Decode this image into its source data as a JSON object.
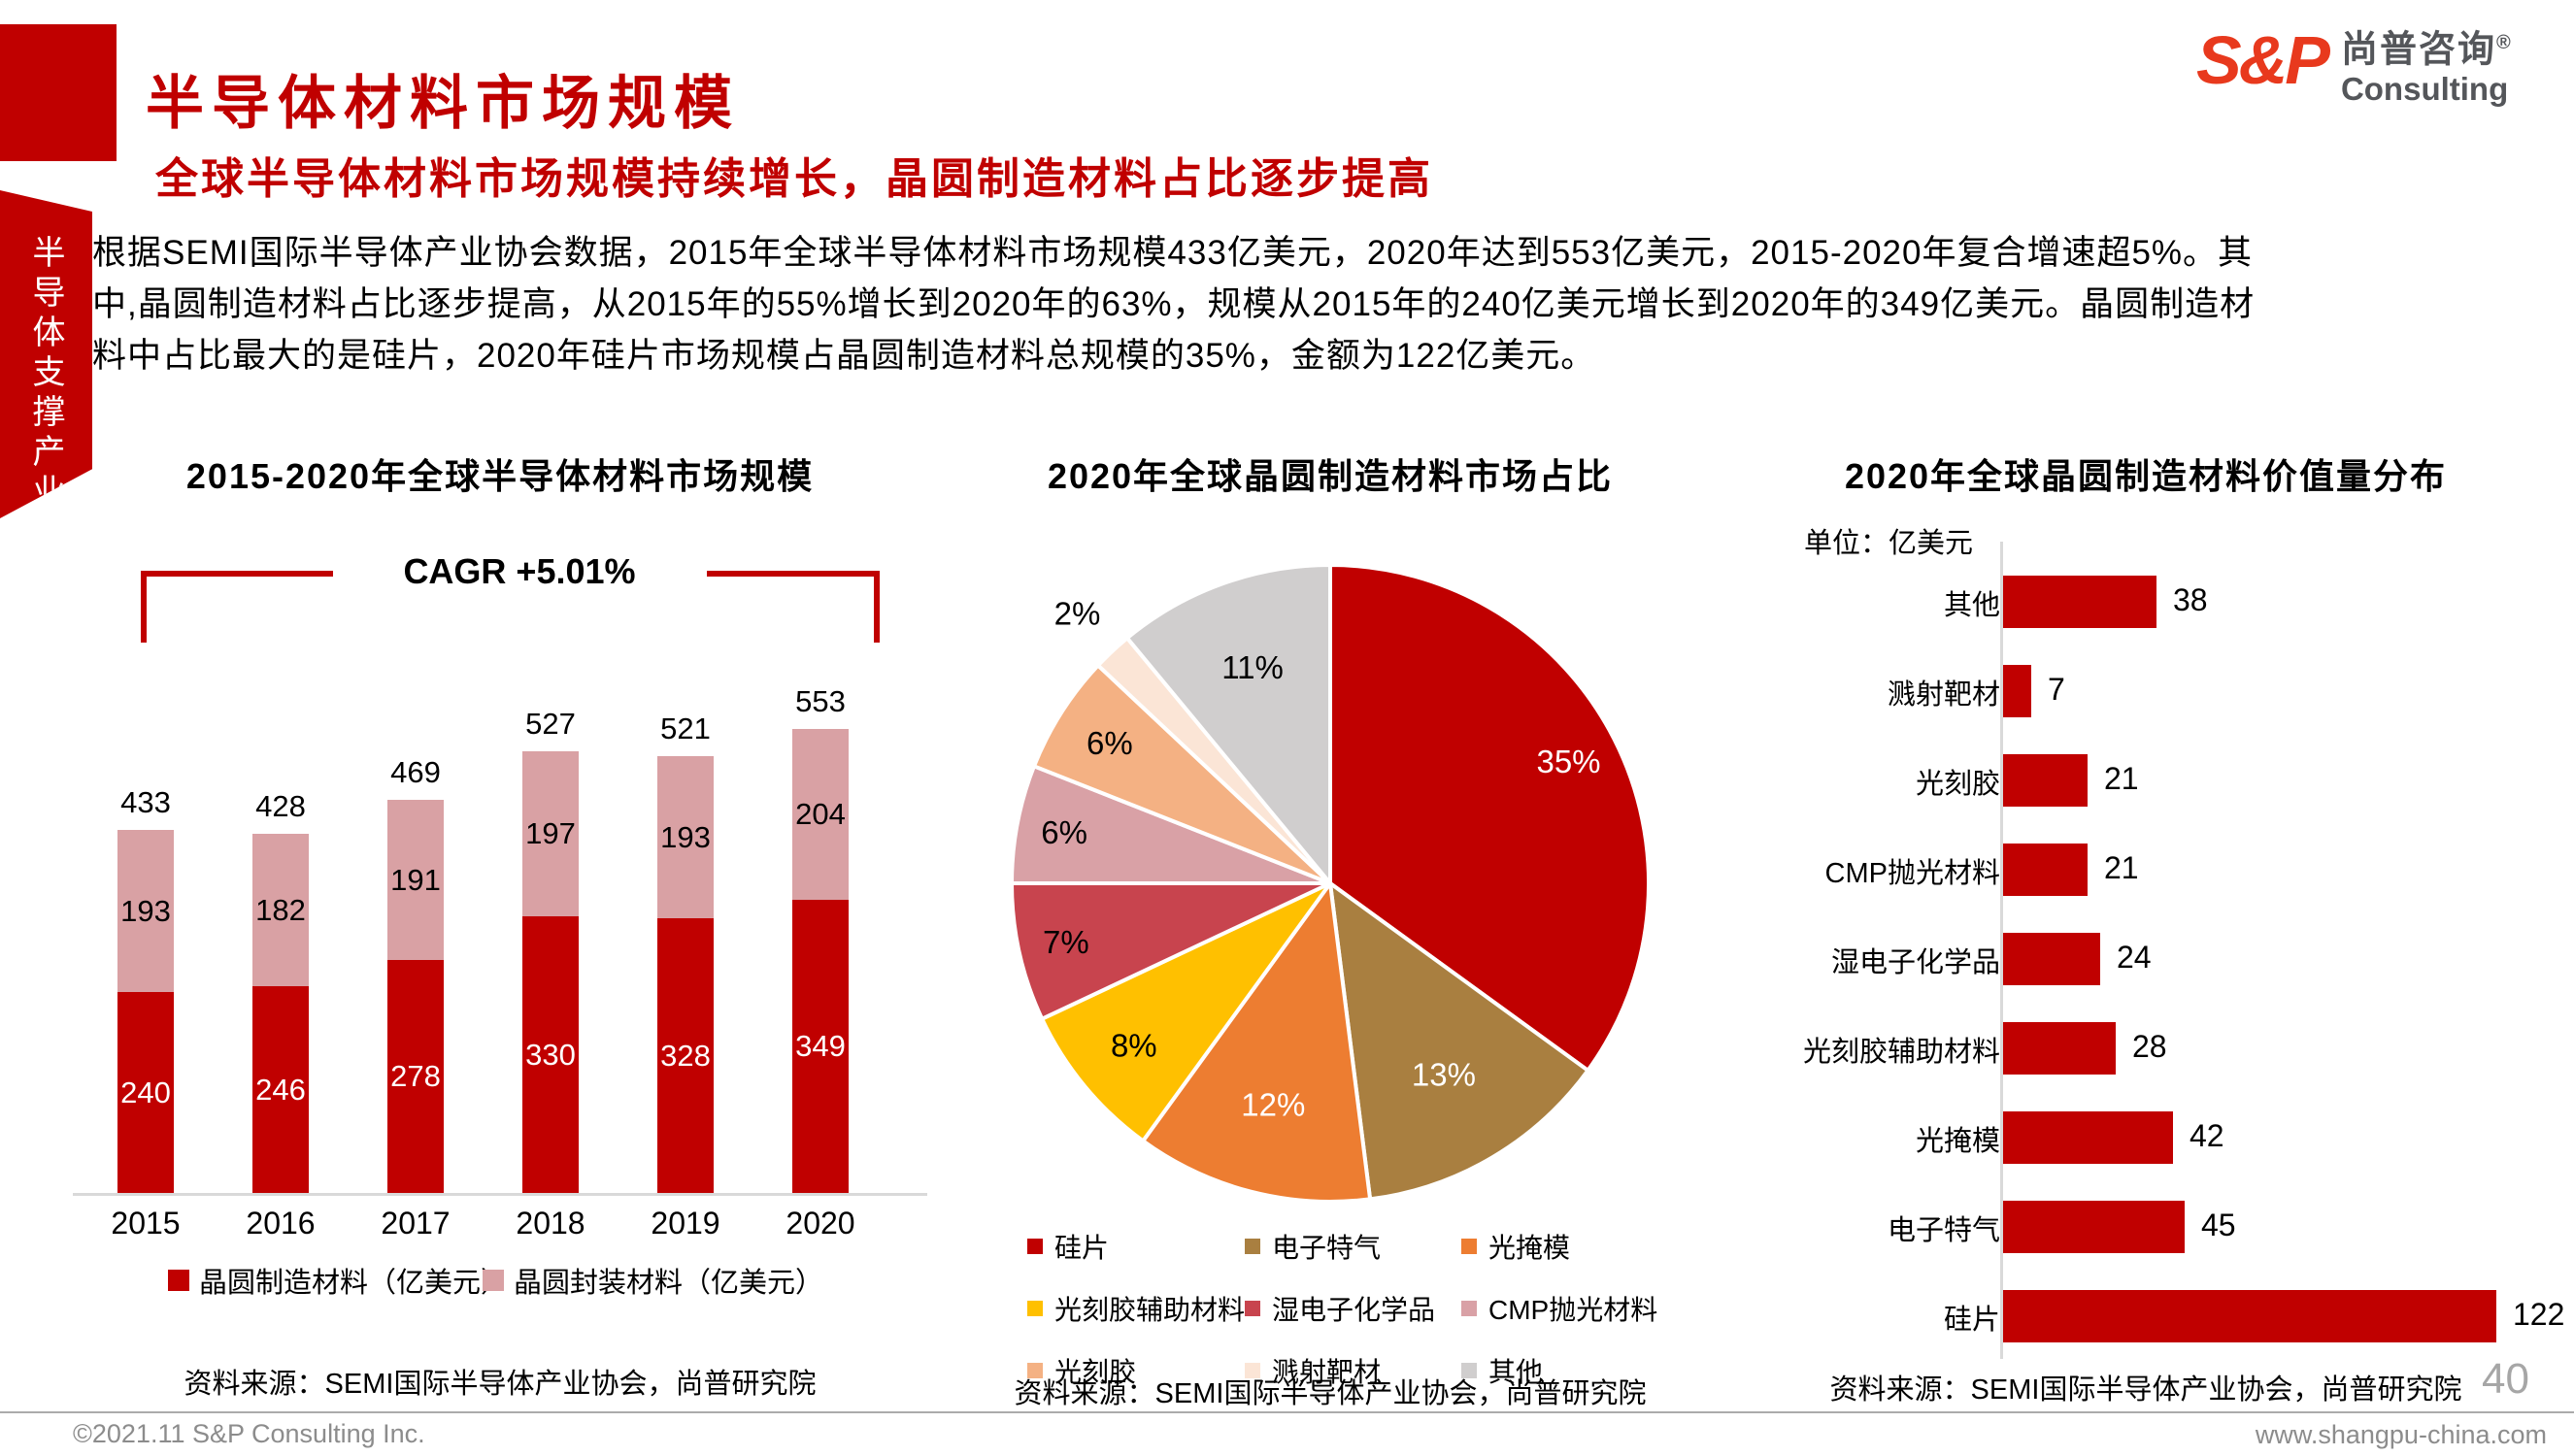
{
  "page": {
    "title": "半导体材料市场规模",
    "subtitle": "全球半导体材料市场规模持续增长，晶圆制造材料占比逐步提高",
    "body_lines": [
      "根据SEMI国际半导体产业协会数据，2015年全球半导体材料市场规模433亿美元，2020年达到553亿美元，2015-2020年复合增速超5%。其",
      "中,晶圆制造材料占比逐步提高，从2015年的55%增长到2020年的63%，规模从2015年的240亿美元增长到2020年的349亿美元。晶圆制造材",
      "料中占比最大的是硅片，2020年硅片市场规模占晶圆制造材料总规模的35%，金额为122亿美元。"
    ],
    "sidebar_vertical_text": "半导体支撑产业",
    "page_number": "40",
    "footer_left": "©2021.11  S&P Consulting Inc.",
    "footer_right": "www.shangpu-china.com"
  },
  "logo": {
    "sp": "S&P",
    "cn": "尚普咨询",
    "reg": "®",
    "en": "Consulting"
  },
  "colors": {
    "accent_red": "#C00000",
    "pink": "#D9A1A4",
    "logo_red": "#E8391D",
    "logo_gray": "#54565A",
    "axis_gray": "#D9D9D9",
    "footer_gray": "#8C8C8C"
  },
  "chart_data": [
    {
      "type": "bar",
      "stacked": true,
      "title": "2015-2020年全球半导体材料市场规模",
      "annotation": "CAGR +5.01%",
      "categories": [
        "2015",
        "2016",
        "2017",
        "2018",
        "2019",
        "2020"
      ],
      "series": [
        {
          "name": "晶圆制造材料（亿美元）",
          "color": "#C00000",
          "label_color": "#FFFFFF",
          "values": [
            240,
            246,
            278,
            330,
            328,
            349
          ]
        },
        {
          "name": "晶圆封装材料（亿美元）",
          "color": "#D9A1A4",
          "label_color": "#000000",
          "values": [
            193,
            182,
            191,
            197,
            193,
            204
          ]
        }
      ],
      "totals": [
        433,
        428,
        469,
        527,
        521,
        553
      ],
      "ylim": [
        0,
        600
      ],
      "grid": false,
      "legend_position": "bottom",
      "source": "资料来源：SEMI国际半导体产业协会，尚普研究院"
    },
    {
      "type": "pie",
      "title": "2020年全球晶圆制造材料市场占比",
      "start_angle_deg": 0,
      "direction": "clockwise",
      "slices": [
        {
          "label": "硅片",
          "value": 35,
          "color": "#C00000",
          "text_color": "#FFFFFF",
          "label_r": 0.84
        },
        {
          "label": "电子特气",
          "value": 13,
          "color": "#A97F40",
          "text_color": "#FFFFFF",
          "label_r": 0.7
        },
        {
          "label": "光掩模",
          "value": 12,
          "color": "#ED7D31",
          "text_color": "#FFFFFF",
          "label_r": 0.72
        },
        {
          "label": "光刻胶辅助材料",
          "value": 8,
          "color": "#FFC000",
          "text_color": "#000000",
          "label_r": 0.8
        },
        {
          "label": "湿电子化学品",
          "value": 7,
          "color": "#C8444E",
          "text_color": "#000000",
          "label_r": 0.85
        },
        {
          "label": "CMP抛光材料",
          "value": 6,
          "color": "#D9A1A6",
          "text_color": "#000000",
          "label_r": 0.85
        },
        {
          "label": "光刻胶",
          "value": 6,
          "color": "#F4B183",
          "text_color": "#000000",
          "label_r": 0.82
        },
        {
          "label": "溅射靶材",
          "value": 2,
          "color": "#FBE5D6",
          "text_color": "#000000",
          "label_r": 1.16
        },
        {
          "label": "其他",
          "value": 11,
          "color": "#D0CECE",
          "text_color": "#000000",
          "label_r": 0.72
        }
      ],
      "legend_position": "bottom",
      "source": "资料来源：SEMI国际半导体产业协会，尚普研究院"
    },
    {
      "type": "bar_horizontal",
      "title": "2020年全球晶圆制造材料价值量分布",
      "unit_label": "单位：亿美元",
      "categories": [
        "其他",
        "溅射靶材",
        "光刻胶",
        "CMP抛光材料",
        "湿电子化学品",
        "光刻胶辅助材料",
        "光掩模",
        "电子特气",
        "硅片"
      ],
      "values": [
        38,
        7,
        21,
        21,
        24,
        28,
        42,
        45,
        122
      ],
      "bar_color": "#C00000",
      "xlim": [
        0,
        130
      ],
      "grid": false,
      "source": "资料来源：SEMI国际半导体产业协会，尚普研究院"
    }
  ]
}
